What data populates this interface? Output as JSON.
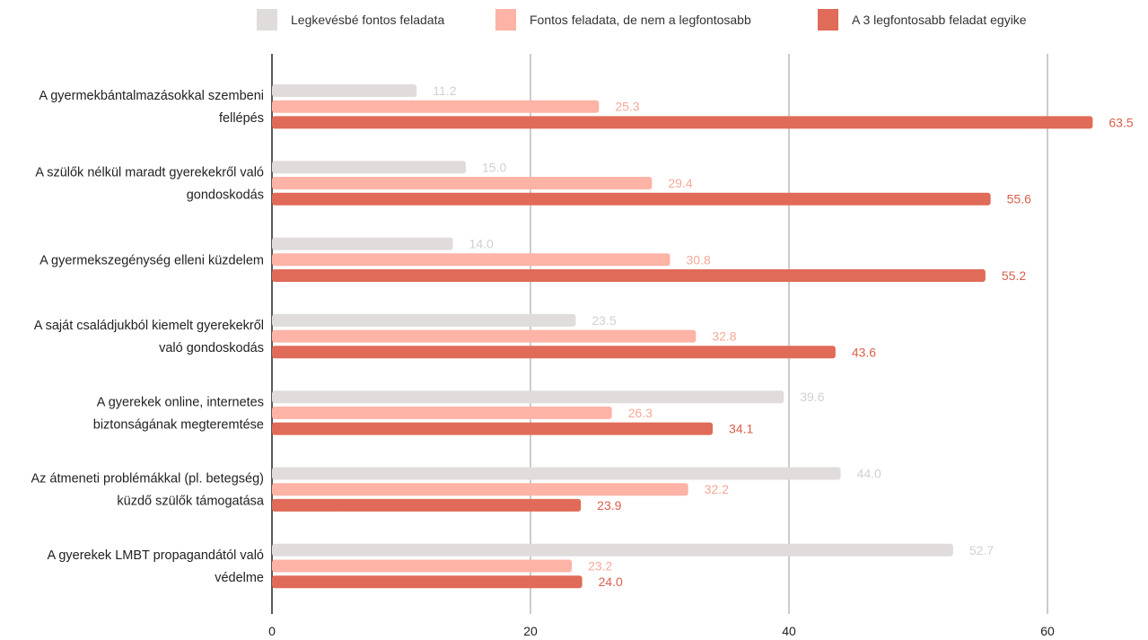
{
  "chart_data": {
    "type": "bar",
    "orientation": "horizontal",
    "title": "",
    "xlabel": "",
    "ylabel": "",
    "xlim": [
      0,
      67
    ],
    "x_ticks": [
      0,
      20,
      40,
      60
    ],
    "grid": true,
    "legend_position": "top",
    "categories": [
      [
        "A gyermekbántalmazásokkal szembeni",
        "fellépés"
      ],
      [
        "A szülők nélkül maradt gyerekekről való",
        "gondoskodás"
      ],
      [
        "A gyermekszegénység elleni küzdelem"
      ],
      [
        "A saját családjukból kiemelt gyerekekről",
        "való gondoskodás"
      ],
      [
        "A gyerekek online, internetes",
        "biztonságának megteremtése"
      ],
      [
        "Az átmeneti problémákkal (pl. betegség)",
        "küzdő szülők támogatása"
      ],
      [
        "A gyerekek LMBT propagandától való",
        "védelme"
      ]
    ],
    "series": [
      {
        "name": "Legkevésbé fontos feladata",
        "color": "#e0dcdc",
        "label_color": "#d3cfcf",
        "values": [
          11.2,
          15.0,
          14.0,
          23.5,
          39.6,
          44.0,
          52.7
        ]
      },
      {
        "name": "Fontos feladata, de nem a legfontosabb",
        "color": "#fdb3a5",
        "label_color": "#f7a898",
        "values": [
          25.3,
          29.4,
          30.8,
          32.8,
          26.3,
          32.2,
          23.2
        ]
      },
      {
        "name": "A 3 legfontosabb feladat egyike",
        "color": "#e06b58",
        "label_color": "#d9604c",
        "values": [
          63.5,
          55.6,
          55.2,
          43.6,
          34.1,
          23.9,
          24.0
        ]
      }
    ]
  }
}
